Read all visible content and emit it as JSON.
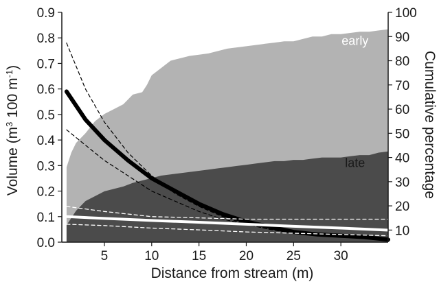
{
  "chart_data": {
    "type": "area",
    "xlabel": "Distance from stream (m)",
    "ylabel_left": {
      "prefix": "Volume (m",
      "sup1": "3",
      "middle": " 100 m",
      "sup2": "-1",
      "suffix": ")"
    },
    "ylabel_right": "Cumulative percentage",
    "xlim": [
      0.5,
      35
    ],
    "ylim_left": [
      0,
      0.9
    ],
    "ylim_right": [
      5,
      100
    ],
    "x_ticks": [
      5,
      10,
      15,
      20,
      25,
      30
    ],
    "y_left_ticks": [
      "0.0",
      "0.1",
      "0.2",
      "0.3",
      "0.4",
      "0.5",
      "0.6",
      "0.7",
      "0.8",
      "0.9"
    ],
    "y_right_ticks": [
      "10",
      "20",
      "30",
      "40",
      "50",
      "60",
      "70",
      "80",
      "90",
      "100"
    ],
    "grid": false,
    "colors": {
      "early_area": "#b3b3b3",
      "late_area": "#4b4b4b",
      "early_curve": "#000000",
      "late_curve": "#ffffff"
    },
    "areas": [
      {
        "name": "early",
        "axis": "right",
        "x": [
          1,
          1.5,
          2,
          3,
          4,
          5,
          6,
          7,
          8,
          9,
          9.5,
          10,
          11,
          12,
          13,
          14,
          15,
          16,
          17,
          18,
          19,
          20,
          21,
          22,
          23,
          24,
          25,
          26,
          27,
          28,
          29,
          30,
          31,
          32,
          33,
          34,
          35
        ],
        "y": [
          36,
          42,
          46,
          50,
          55,
          58,
          60,
          62,
          66,
          67,
          70,
          74,
          77,
          80,
          81,
          82,
          82.5,
          83,
          84,
          85,
          85.5,
          86,
          86.5,
          87,
          87.5,
          88,
          88,
          89,
          90,
          90,
          91,
          91,
          91.5,
          92,
          92,
          92.5,
          93
        ]
      },
      {
        "name": "late",
        "axis": "right",
        "x": [
          1,
          2,
          3,
          4,
          5,
          6,
          7,
          8,
          9,
          10,
          11,
          12,
          13,
          14,
          15,
          16,
          17,
          18,
          19,
          20,
          21,
          22,
          23,
          24,
          25,
          26,
          27,
          28,
          29,
          30,
          31,
          32,
          33,
          34,
          35
        ],
        "y": [
          12,
          18,
          22,
          24,
          26,
          27,
          28,
          29.5,
          30.5,
          31.5,
          32.5,
          33,
          33.5,
          34,
          34.5,
          35,
          35.5,
          36,
          36.5,
          37,
          37.5,
          38,
          38.5,
          38.5,
          39,
          39,
          39.5,
          40,
          40,
          40,
          40.5,
          41,
          41,
          42,
          42.5
        ]
      }
    ],
    "curves": [
      {
        "name": "early-fit",
        "axis": "left",
        "style": "solid-thick",
        "x": [
          1,
          3,
          5,
          7.5,
          10,
          12.5,
          15,
          17.5,
          20,
          22.5,
          25,
          27.5,
          30,
          32.5,
          35
        ],
        "y": [
          0.59,
          0.48,
          0.4,
          0.32,
          0.25,
          0.2,
          0.15,
          0.11,
          0.08,
          0.06,
          0.04,
          0.03,
          0.025,
          0.02,
          0.01
        ]
      },
      {
        "name": "early-upper",
        "axis": "left",
        "style": "dashed",
        "x": [
          1,
          3,
          5,
          7.5,
          10,
          12.5,
          15,
          17.5,
          20,
          22.5,
          25,
          27.5,
          30,
          32.5,
          35
        ],
        "y": [
          0.78,
          0.6,
          0.47,
          0.35,
          0.26,
          0.19,
          0.14,
          0.1,
          0.07,
          0.05,
          0.035,
          0.027,
          0.02,
          0.015,
          0.01
        ]
      },
      {
        "name": "early-lower",
        "axis": "left",
        "style": "dashed",
        "x": [
          1,
          3,
          5,
          7.5,
          10,
          12.5,
          15,
          17.5,
          20,
          22.5,
          25,
          27.5,
          30,
          32.5,
          35
        ],
        "y": [
          0.44,
          0.38,
          0.32,
          0.26,
          0.2,
          0.16,
          0.12,
          0.09,
          0.07,
          0.05,
          0.035,
          0.027,
          0.02,
          0.015,
          0.01
        ]
      },
      {
        "name": "late-fit",
        "axis": "left",
        "style": "solid-white",
        "x": [
          1,
          5,
          10,
          15,
          20,
          25,
          30,
          35
        ],
        "y": [
          0.1,
          0.093,
          0.085,
          0.078,
          0.07,
          0.062,
          0.055,
          0.047
        ]
      },
      {
        "name": "late-upper",
        "axis": "left",
        "style": "dashed-white",
        "x": [
          1,
          2,
          5,
          10,
          15,
          20,
          25,
          30,
          35
        ],
        "y": [
          0.14,
          0.135,
          0.12,
          0.1,
          0.095,
          0.09,
          0.09,
          0.09,
          0.09
        ]
      },
      {
        "name": "late-lower",
        "axis": "left",
        "style": "dashed-white",
        "x": [
          1,
          5,
          10,
          15,
          20,
          25,
          30,
          35
        ],
        "y": [
          0.07,
          0.065,
          0.055,
          0.048,
          0.04,
          0.035,
          0.03,
          0.025
        ]
      }
    ],
    "annotations": [
      {
        "text": "early",
        "x": 31.5,
        "y_right": 86.5,
        "color": "#ffffff"
      },
      {
        "text": "late",
        "x": 31.5,
        "y_right": 36,
        "color": "#1a1a1a"
      }
    ]
  }
}
